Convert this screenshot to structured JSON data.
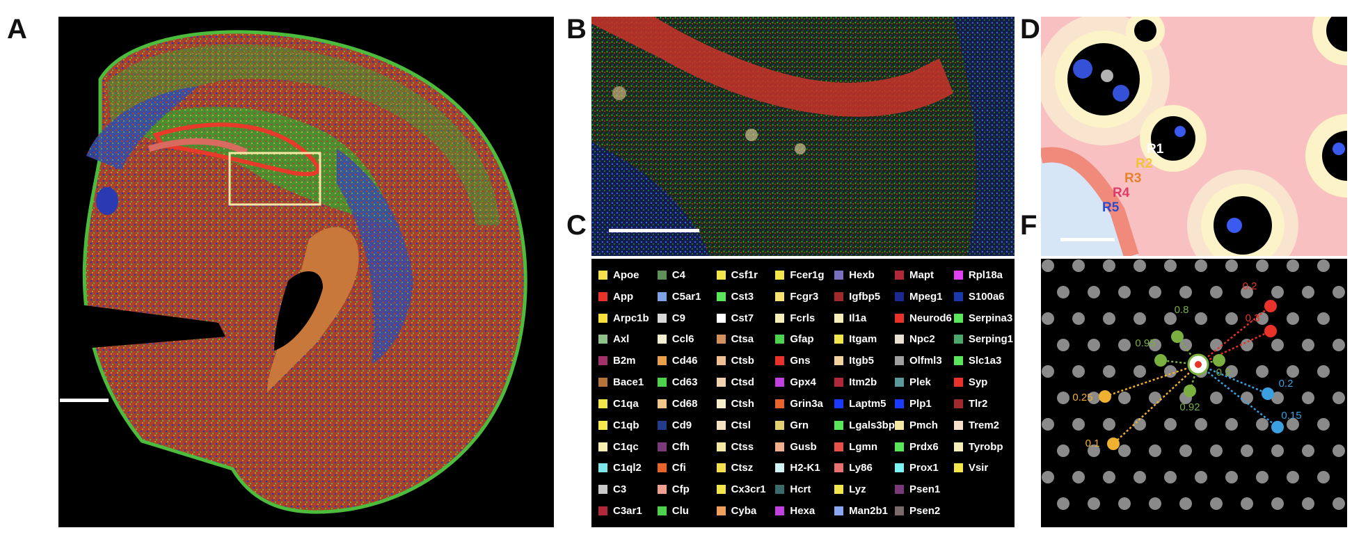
{
  "panels": {
    "a": {
      "label": "A"
    },
    "b": {
      "label": "B"
    },
    "c": {
      "label": "C"
    },
    "d": {
      "label": "D"
    },
    "f": {
      "label": "F"
    }
  },
  "legend": [
    {
      "name": "Apoe",
      "color": "#f4e04d"
    },
    {
      "name": "App",
      "color": "#e8322a"
    },
    {
      "name": "Arpc1b",
      "color": "#f7e03c"
    },
    {
      "name": "Axl",
      "color": "#8fbf8a"
    },
    {
      "name": "B2m",
      "color": "#a3326b"
    },
    {
      "name": "Bace1",
      "color": "#b5733c"
    },
    {
      "name": "C1qa",
      "color": "#f2e64a"
    },
    {
      "name": "C1qb",
      "color": "#f6e94f"
    },
    {
      "name": "C1qc",
      "color": "#f7efb0"
    },
    {
      "name": "C1ql2",
      "color": "#7de6e6"
    },
    {
      "name": "C3",
      "color": "#c8c8c8"
    },
    {
      "name": "C3ar1",
      "color": "#b0283a"
    },
    {
      "name": "C4",
      "color": "#5f8f5a"
    },
    {
      "name": "C5ar1",
      "color": "#7fa1e8"
    },
    {
      "name": "C9",
      "color": "#d9d9d9"
    },
    {
      "name": "Ccl6",
      "color": "#f6f0d2"
    },
    {
      "name": "Cd46",
      "color": "#e8a04a"
    },
    {
      "name": "Cd63",
      "color": "#4cd24c"
    },
    {
      "name": "Cd68",
      "color": "#f2c88a"
    },
    {
      "name": "Cd9",
      "color": "#243a8a"
    },
    {
      "name": "Cfh",
      "color": "#7a3a7a"
    },
    {
      "name": "Cfi",
      "color": "#e8642a"
    },
    {
      "name": "Cfp",
      "color": "#f0a090"
    },
    {
      "name": "Clu",
      "color": "#4cd24c"
    },
    {
      "name": "Csf1r",
      "color": "#f2e64a"
    },
    {
      "name": "Cst3",
      "color": "#5ae65a"
    },
    {
      "name": "Cst7",
      "color": "#ffffff"
    },
    {
      "name": "Ctsa",
      "color": "#d2905a"
    },
    {
      "name": "Ctsb",
      "color": "#f0c090"
    },
    {
      "name": "Ctsd",
      "color": "#f3d2b0"
    },
    {
      "name": "Ctsh",
      "color": "#f7edc8"
    },
    {
      "name": "Ctsl",
      "color": "#f6e2c0"
    },
    {
      "name": "Ctss",
      "color": "#f6e8a0"
    },
    {
      "name": "Ctsz",
      "color": "#f4e04d"
    },
    {
      "name": "Cx3cr1",
      "color": "#f2e64a"
    },
    {
      "name": "Cyba",
      "color": "#f0a05a"
    },
    {
      "name": "Fcer1g",
      "color": "#f2e64a"
    },
    {
      "name": "Fcgr3",
      "color": "#f6e070"
    },
    {
      "name": "Fcrls",
      "color": "#f7efb8"
    },
    {
      "name": "Gfap",
      "color": "#4cd24c"
    },
    {
      "name": "Gns",
      "color": "#e8322a"
    },
    {
      "name": "Gpx4",
      "color": "#c040e0"
    },
    {
      "name": "Grin3a",
      "color": "#e8642a"
    },
    {
      "name": "Grn",
      "color": "#e0d070"
    },
    {
      "name": "Gusb",
      "color": "#f0b090"
    },
    {
      "name": "H2-K1",
      "color": "#d0f4f4"
    },
    {
      "name": "Hcrt",
      "color": "#3a6a6a"
    },
    {
      "name": "Hexa",
      "color": "#c040e0"
    },
    {
      "name": "Hexb",
      "color": "#7a70c0"
    },
    {
      "name": "Igfbp5",
      "color": "#a02a2a"
    },
    {
      "name": "Il1a",
      "color": "#f7efb8"
    },
    {
      "name": "Itgam",
      "color": "#f2e64a"
    },
    {
      "name": "Itgb5",
      "color": "#f3d2a0"
    },
    {
      "name": "Itm2b",
      "color": "#b0283a"
    },
    {
      "name": "Laptm5",
      "color": "#1a3aff"
    },
    {
      "name": "Lgals3bp",
      "color": "#5ae65a"
    },
    {
      "name": "Lgmn",
      "color": "#e8504a"
    },
    {
      "name": "Ly86",
      "color": "#e87070"
    },
    {
      "name": "Lyz",
      "color": "#f2e64a"
    },
    {
      "name": "Man2b1",
      "color": "#8aa8f0"
    },
    {
      "name": "Mapt",
      "color": "#b0283a"
    },
    {
      "name": "Mpeg1",
      "color": "#1a2a90"
    },
    {
      "name": "Neurod6",
      "color": "#e8322a"
    },
    {
      "name": "Npc2",
      "color": "#e8e0d0"
    },
    {
      "name": "Olfml3",
      "color": "#a0a0a0"
    },
    {
      "name": "Plek",
      "color": "#5a9a9a"
    },
    {
      "name": "Plp1",
      "color": "#1a3aff"
    },
    {
      "name": "Pmch",
      "color": "#f6e8a0"
    },
    {
      "name": "Prdx6",
      "color": "#5ae65a"
    },
    {
      "name": "Prox1",
      "color": "#7df4f4"
    },
    {
      "name": "Psen1",
      "color": "#7a3a7a"
    },
    {
      "name": "Psen2",
      "color": "#7a6a6a"
    },
    {
      "name": "Rpl18a",
      "color": "#e040f0"
    },
    {
      "name": "S100a6",
      "color": "#1a3aaa"
    },
    {
      "name": "Serpina3",
      "color": "#5ae65a"
    },
    {
      "name": "Serping1",
      "color": "#4aa86a"
    },
    {
      "name": "Slc1a3",
      "color": "#5ae65a"
    },
    {
      "name": "Syp",
      "color": "#e8322a"
    },
    {
      "name": "Tlr2",
      "color": "#a02a2a"
    },
    {
      "name": "Trem2",
      "color": "#f6e0cc"
    },
    {
      "name": "Tyrobp",
      "color": "#f7efb8"
    },
    {
      "name": "Vsir",
      "color": "#f2e64a"
    }
  ],
  "rings": [
    {
      "label": "R1",
      "color": "#ffffff"
    },
    {
      "label": "R2",
      "color": "#f2c43a"
    },
    {
      "label": "R3",
      "color": "#e88030"
    },
    {
      "label": "R4",
      "color": "#e03a6a"
    },
    {
      "label": "R5",
      "color": "#2a4ad0"
    }
  ],
  "f_weights": [
    {
      "label": "0.2",
      "color": "#e8322a"
    },
    {
      "label": "0.3",
      "color": "#e8322a"
    },
    {
      "label": "0.8",
      "color": "#7ab040"
    },
    {
      "label": "0.95",
      "color": "#7ab040"
    },
    {
      "label": "0.9",
      "color": "#7ab040"
    },
    {
      "label": "0.92",
      "color": "#7ab040"
    },
    {
      "label": "0.25",
      "color": "#f0b030"
    },
    {
      "label": "0.1",
      "color": "#f0b030"
    },
    {
      "label": "0.2",
      "color": "#3aa0e0"
    },
    {
      "label": "0.15",
      "color": "#3aa0e0"
    }
  ]
}
